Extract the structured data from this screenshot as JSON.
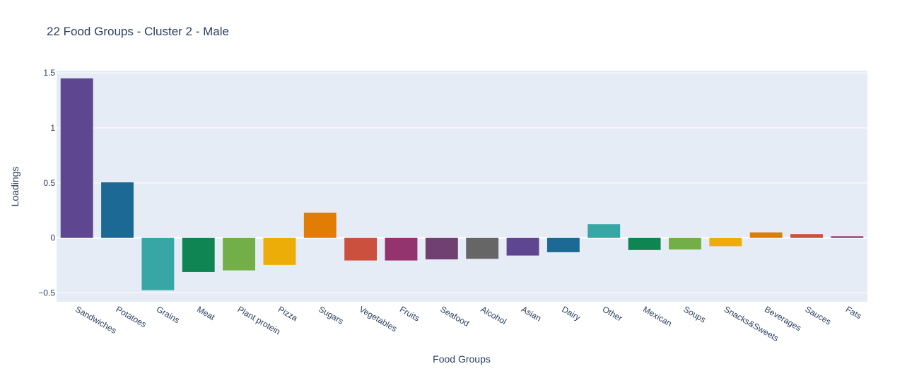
{
  "chart_data": {
    "type": "bar",
    "title": "22 Food Groups - Cluster 2 - Male",
    "xlabel": "Food Groups",
    "ylabel": "Loadings",
    "categories": [
      "Sandwiches",
      "Potatoes",
      "Grains",
      "Meat",
      "Plant protein",
      "Pizza",
      "Sugars",
      "Vegetables",
      "Fruits",
      "Seafood",
      "Alcohol",
      "Asian",
      "Dairy",
      "Other",
      "Mexican",
      "Soups",
      "Snacks&Sweets",
      "Beverages",
      "Sauces",
      "Fats"
    ],
    "values": [
      1.45,
      0.505,
      -0.475,
      -0.31,
      -0.295,
      -0.245,
      0.23,
      -0.205,
      -0.205,
      -0.195,
      -0.19,
      -0.16,
      -0.13,
      0.125,
      -0.11,
      -0.105,
      -0.075,
      0.05,
      0.035,
      0.015
    ],
    "colors": [
      "#5f4690",
      "#1d6996",
      "#38a6a5",
      "#0f8554",
      "#73af48",
      "#edad08",
      "#e17c05",
      "#cc503e",
      "#94346e",
      "#6f4070",
      "#666666",
      "#5f4690",
      "#1d6996",
      "#38a6a5",
      "#0f8554",
      "#73af48",
      "#edad08",
      "#e17c05",
      "#cc503e",
      "#94346e"
    ],
    "ylim": [
      -0.58,
      1.52
    ],
    "yticks": [
      -0.5,
      0,
      0.5,
      1,
      1.5
    ],
    "ytick_labels": [
      "−0.5",
      "0",
      "0.5",
      "1",
      "1.5"
    ],
    "grid": true,
    "legend": "none",
    "plot_bgcolor": "#e5ecf6",
    "gridcolor": "#ffffff"
  }
}
